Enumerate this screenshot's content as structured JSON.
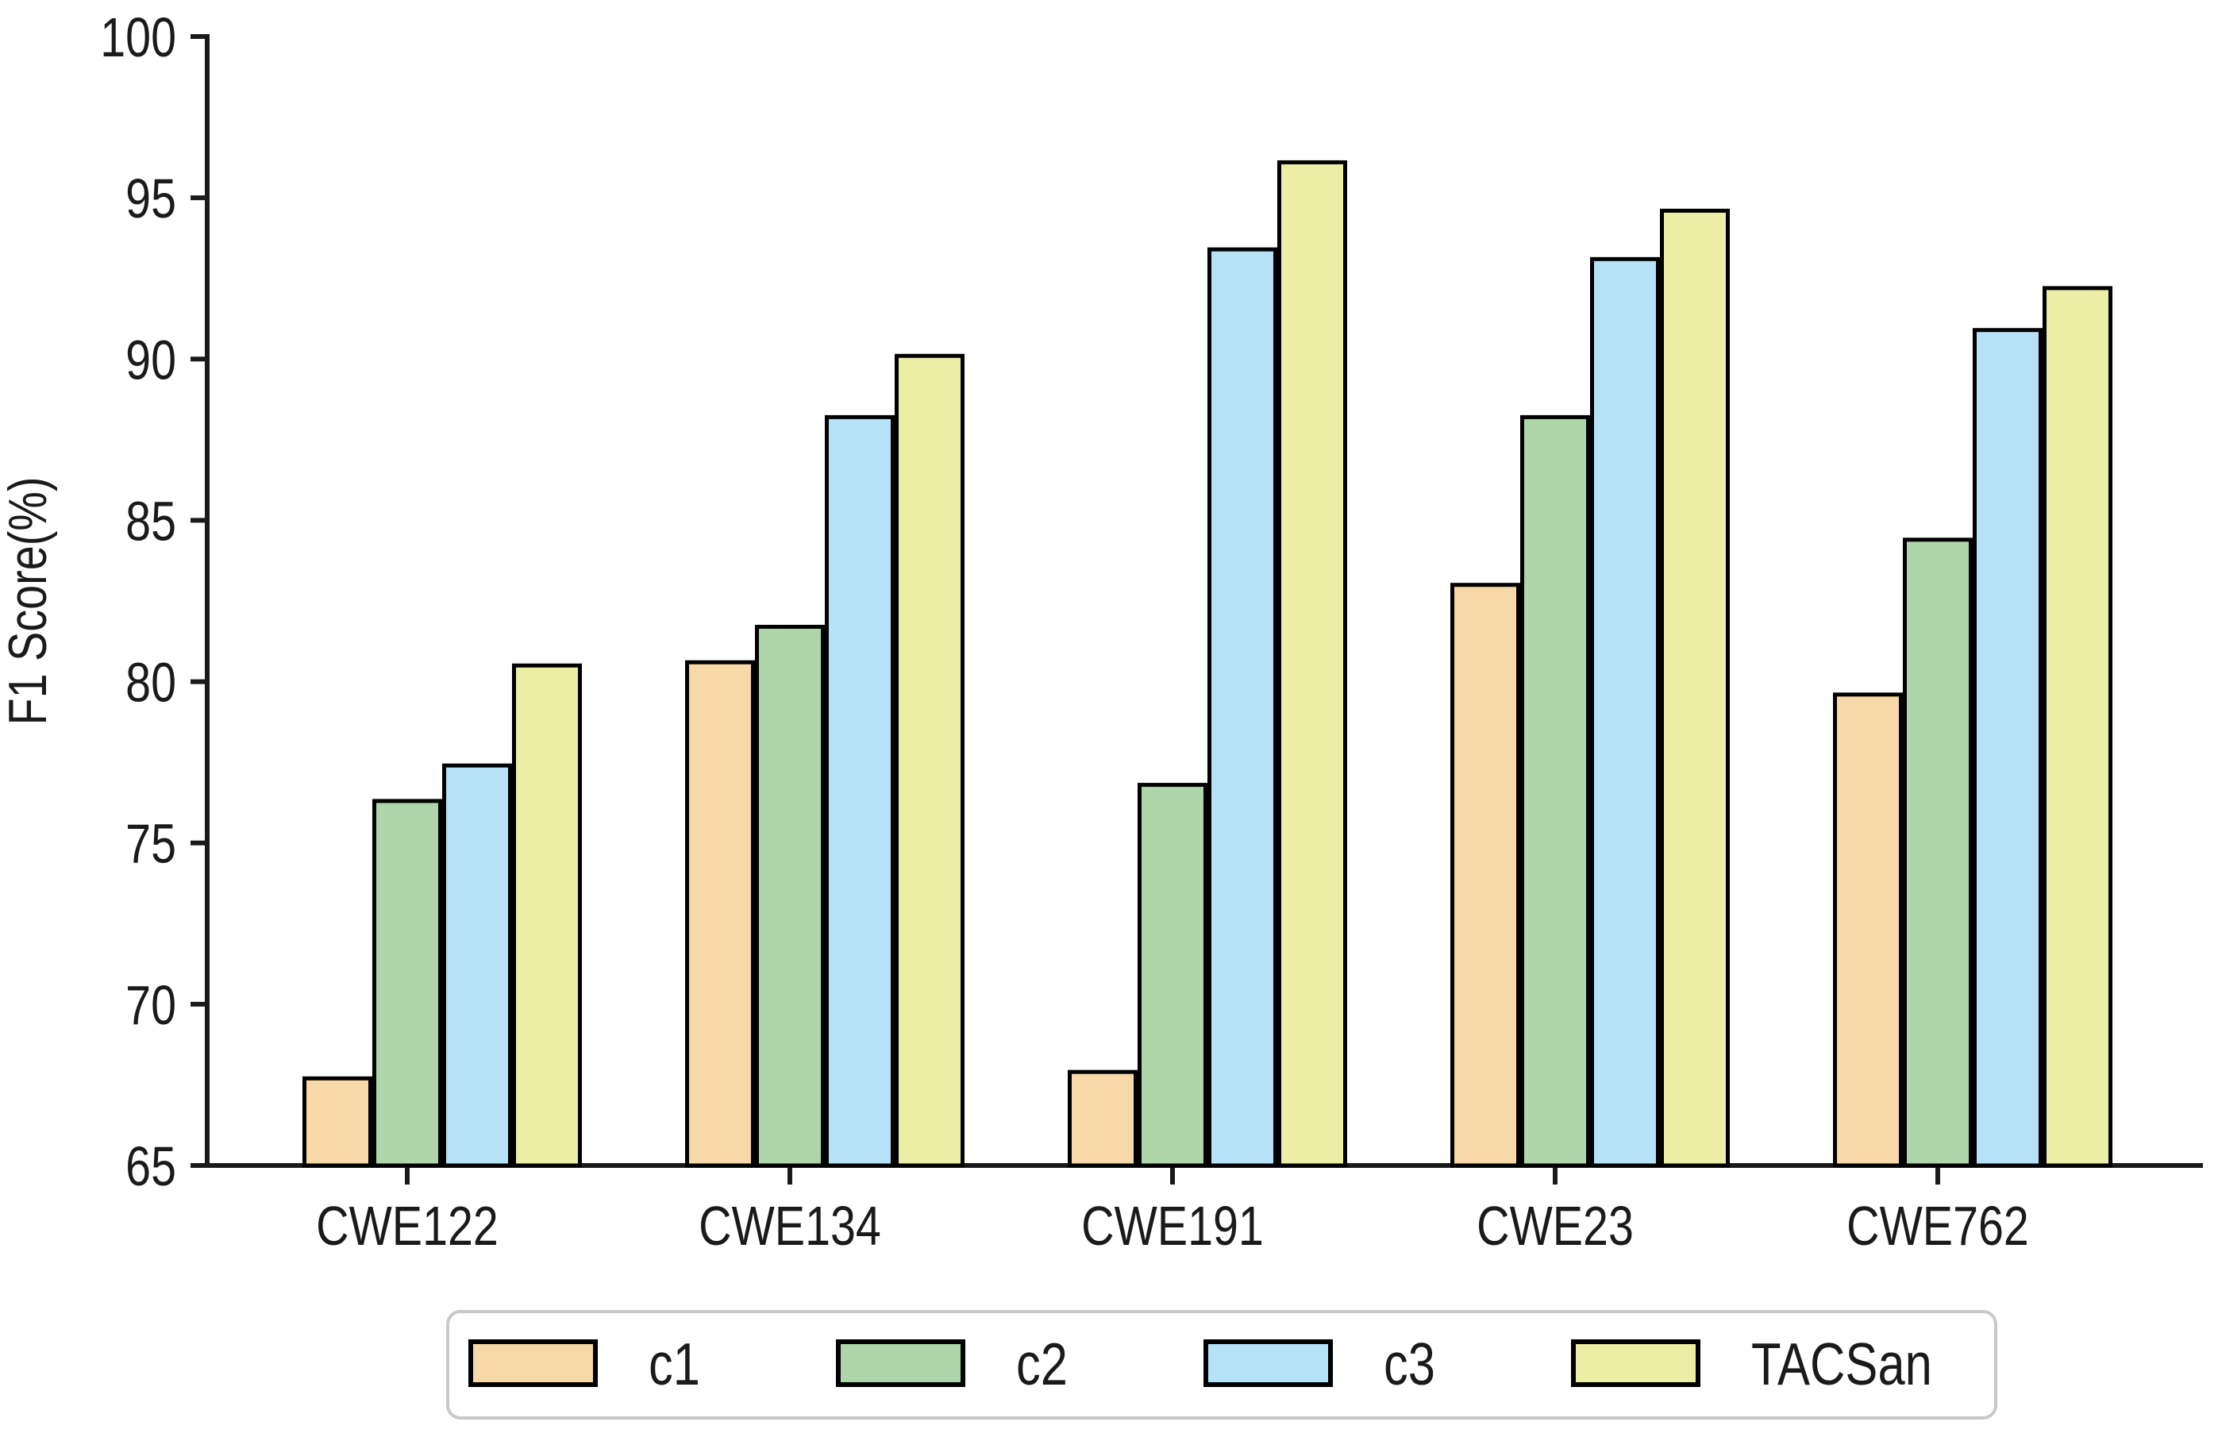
{
  "chart_data": {
    "type": "bar",
    "title": "",
    "xlabel": "",
    "ylabel": "F1 Score(%)",
    "ylim": [
      65,
      100
    ],
    "yticks": [
      65,
      70,
      75,
      80,
      85,
      90,
      95,
      100
    ],
    "categories": [
      "CWE122",
      "CWE134",
      "CWE191",
      "CWE23",
      "CWE762"
    ],
    "series": [
      {
        "name": "c1",
        "color": "#F6D9A7",
        "values": [
          67.7,
          80.6,
          67.9,
          83.0,
          79.6
        ]
      },
      {
        "name": "c2",
        "color": "#AFD6AA",
        "values": [
          76.3,
          81.7,
          76.8,
          88.2,
          84.4
        ]
      },
      {
        "name": "c3",
        "color": "#B6E2F8",
        "values": [
          77.4,
          88.2,
          93.4,
          93.1,
          90.9
        ]
      },
      {
        "name": "TACSan",
        "color": "#EBEEA4",
        "values": [
          80.5,
          90.1,
          96.1,
          94.6,
          92.2
        ]
      }
    ],
    "bar_edge_color": "#000000",
    "axis_color": "#1A1A1A",
    "grid": false,
    "legend": {
      "position": "bottom",
      "labels": [
        "c1",
        "c2",
        "c3",
        "TACSan"
      ],
      "border_color": "#C9C9C9",
      "background": "#FFFFFF"
    }
  }
}
